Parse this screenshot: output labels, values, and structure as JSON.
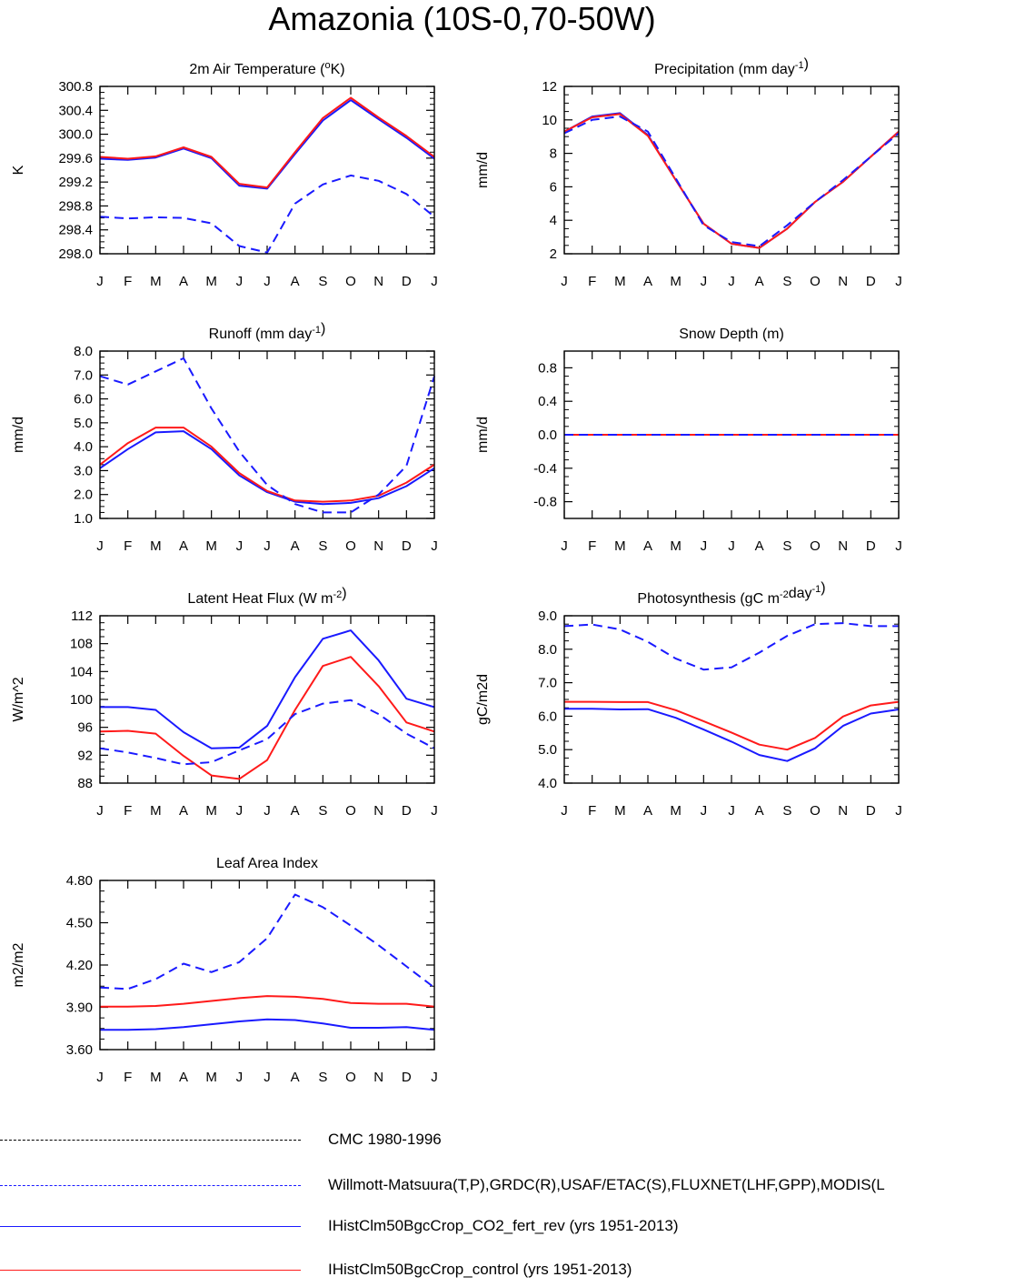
{
  "title": "Amazonia (10S-0,70-50W)",
  "months": [
    "J",
    "F",
    "M",
    "A",
    "M",
    "J",
    "J",
    "A",
    "S",
    "O",
    "N",
    "D",
    "J"
  ],
  "colors": {
    "obs": "#1a1aff",
    "co2": "#1a1aff",
    "control": "#ff1a1a",
    "cmc": "#000000"
  },
  "chart_data": [
    {
      "id": "temp",
      "type": "line",
      "title": "2m Air Temperature (°K)",
      "ylabel": "K",
      "ylim": [
        298.0,
        300.8
      ],
      "yticks": [
        "298.0",
        "298.4",
        "298.8",
        "299.2",
        "299.6",
        "300.0",
        "300.4",
        "300.8"
      ],
      "series": [
        {
          "key": "co2",
          "style": "solid",
          "values": [
            299.59,
            299.57,
            299.61,
            299.76,
            299.6,
            299.14,
            299.09,
            299.67,
            300.23,
            300.57,
            300.25,
            299.94,
            299.59
          ]
        },
        {
          "key": "control",
          "style": "solid",
          "values": [
            299.62,
            299.59,
            299.63,
            299.78,
            299.62,
            299.17,
            299.11,
            299.7,
            300.27,
            300.61,
            300.28,
            299.97,
            299.62
          ]
        },
        {
          "key": "obs",
          "style": "dashed",
          "values": [
            298.62,
            298.59,
            298.61,
            298.6,
            298.51,
            298.13,
            298.02,
            298.84,
            299.16,
            299.31,
            299.22,
            299.0,
            298.62
          ]
        }
      ]
    },
    {
      "id": "precip",
      "type": "line",
      "title": "Precipitation (mm day-1)",
      "ylabel": "mm/d",
      "ylim": [
        2,
        12
      ],
      "yticks": [
        "2",
        "4",
        "6",
        "8",
        "10",
        "12"
      ],
      "series": [
        {
          "key": "co2",
          "style": "solid",
          "values": [
            9.3,
            10.2,
            10.4,
            9.1,
            6.4,
            3.8,
            2.6,
            2.35,
            3.5,
            5.1,
            6.3,
            7.8,
            9.3
          ]
        },
        {
          "key": "control",
          "style": "solid",
          "values": [
            9.3,
            10.15,
            10.35,
            9.05,
            6.4,
            3.8,
            2.6,
            2.35,
            3.5,
            5.1,
            6.3,
            7.8,
            9.3
          ]
        },
        {
          "key": "obs",
          "style": "dashed",
          "values": [
            9.2,
            10.0,
            10.2,
            9.3,
            6.5,
            3.7,
            2.7,
            2.45,
            3.7,
            5.1,
            6.4,
            7.8,
            9.2
          ]
        }
      ]
    },
    {
      "id": "runoff",
      "type": "line",
      "title": "Runoff (mm day-1)",
      "ylabel": "mm/d",
      "ylim": [
        1.0,
        8.0
      ],
      "yticks": [
        "1.0",
        "2.0",
        "3.0",
        "4.0",
        "5.0",
        "6.0",
        "7.0",
        "8.0"
      ],
      "series": [
        {
          "key": "co2",
          "style": "solid",
          "values": [
            3.1,
            3.9,
            4.6,
            4.65,
            3.9,
            2.8,
            2.1,
            1.7,
            1.6,
            1.65,
            1.85,
            2.35,
            3.1
          ]
        },
        {
          "key": "control",
          "style": "solid",
          "values": [
            3.25,
            4.15,
            4.8,
            4.8,
            4.0,
            2.9,
            2.15,
            1.75,
            1.7,
            1.75,
            1.95,
            2.5,
            3.25
          ]
        },
        {
          "key": "obs",
          "style": "dashed",
          "values": [
            6.95,
            6.6,
            7.15,
            7.7,
            5.6,
            3.8,
            2.4,
            1.6,
            1.25,
            1.25,
            2.0,
            3.2,
            6.95
          ]
        }
      ]
    },
    {
      "id": "snow",
      "type": "line",
      "title": "Snow Depth (m)",
      "ylabel": "mm/d",
      "ylim": [
        -1.0,
        1.0
      ],
      "yticks": [
        "-0.8",
        "-0.4",
        "0.0",
        "0.4",
        "0.8"
      ],
      "ytick_values": [
        -0.8,
        -0.4,
        0.0,
        0.4,
        0.8
      ],
      "series": [
        {
          "key": "co2",
          "style": "solid",
          "values": [
            0,
            0,
            0,
            0,
            0,
            0,
            0,
            0,
            0,
            0,
            0,
            0,
            0
          ]
        },
        {
          "key": "control",
          "style": "solid",
          "values": [
            0,
            0,
            0,
            0,
            0,
            0,
            0,
            0,
            0,
            0,
            0,
            0,
            0
          ]
        },
        {
          "key": "obs",
          "style": "dashed",
          "values": [
            0,
            0,
            0,
            0,
            0,
            0,
            0,
            0,
            0,
            0,
            0,
            0,
            0
          ]
        }
      ]
    },
    {
      "id": "lhf",
      "type": "line",
      "title": "Latent Heat Flux (W m-2)",
      "ylabel": "W/m^2",
      "ylim": [
        88,
        112
      ],
      "yticks": [
        "88",
        "92",
        "96",
        "100",
        "104",
        "108",
        "112"
      ],
      "series": [
        {
          "key": "co2",
          "style": "solid",
          "values": [
            98.9,
            98.9,
            98.5,
            95.3,
            93.0,
            93.1,
            96.2,
            103.2,
            108.7,
            109.9,
            105.6,
            100.1,
            98.9
          ]
        },
        {
          "key": "control",
          "style": "solid",
          "values": [
            95.4,
            95.5,
            95.1,
            91.9,
            89.1,
            88.6,
            91.3,
            98.5,
            104.8,
            106.1,
            101.9,
            96.7,
            95.4
          ]
        },
        {
          "key": "obs",
          "style": "dashed",
          "values": [
            93.0,
            92.4,
            91.6,
            90.7,
            91.0,
            92.7,
            94.3,
            97.9,
            99.4,
            99.9,
            97.9,
            95.1,
            93.0
          ]
        }
      ]
    },
    {
      "id": "gpp",
      "type": "line",
      "title": "Photosynthesis (gC m-2day-1)",
      "ylabel": "gC/m2d",
      "ylim": [
        4.0,
        9.0
      ],
      "yticks": [
        "4.0",
        "5.0",
        "6.0",
        "7.0",
        "8.0",
        "9.0"
      ],
      "series": [
        {
          "key": "co2",
          "style": "solid",
          "values": [
            6.22,
            6.22,
            6.2,
            6.21,
            5.95,
            5.6,
            5.24,
            4.84,
            4.66,
            5.04,
            5.71,
            6.08,
            6.2
          ]
        },
        {
          "key": "control",
          "style": "solid",
          "values": [
            6.43,
            6.43,
            6.42,
            6.42,
            6.18,
            5.85,
            5.51,
            5.15,
            5.0,
            5.35,
            5.99,
            6.32,
            6.43
          ]
        },
        {
          "key": "obs",
          "style": "dashed",
          "values": [
            8.69,
            8.74,
            8.59,
            8.22,
            7.72,
            7.39,
            7.46,
            7.9,
            8.4,
            8.75,
            8.78,
            8.69,
            8.69
          ]
        }
      ]
    },
    {
      "id": "lai",
      "type": "line",
      "title": "Leaf Area Index",
      "ylabel": "m2/m2",
      "ylim": [
        3.6,
        4.8
      ],
      "yticks": [
        "3.60",
        "3.90",
        "4.20",
        "4.50",
        "4.80"
      ],
      "series": [
        {
          "key": "co2",
          "style": "solid",
          "values": [
            3.74,
            3.74,
            3.745,
            3.76,
            3.78,
            3.8,
            3.815,
            3.81,
            3.785,
            3.755,
            3.755,
            3.76,
            3.74
          ]
        },
        {
          "key": "control",
          "style": "solid",
          "values": [
            3.905,
            3.905,
            3.91,
            3.925,
            3.945,
            3.965,
            3.98,
            3.975,
            3.96,
            3.93,
            3.925,
            3.925,
            3.905
          ]
        },
        {
          "key": "obs",
          "style": "dashed",
          "values": [
            4.04,
            4.03,
            4.1,
            4.21,
            4.15,
            4.22,
            4.39,
            4.7,
            4.61,
            4.48,
            4.34,
            4.19,
            4.04
          ]
        }
      ]
    }
  ],
  "legend": [
    {
      "key": "cmc",
      "style": "dashed",
      "label": "CMC 1980-1996"
    },
    {
      "key": "obs",
      "style": "dashed",
      "label": "Willmott-Matsuura(T,P),GRDC(R),USAF/ETAC(S),FLUXNET(LHF,GPP),MODIS(L"
    },
    {
      "key": "co2",
      "style": "solid",
      "label": "IHistClm50BgcCrop_CO2_fert_rev (yrs 1951-2013)"
    },
    {
      "key": "control",
      "style": "solid",
      "label": "IHistClm50BgcCrop_control (yrs 1951-2013)"
    }
  ]
}
